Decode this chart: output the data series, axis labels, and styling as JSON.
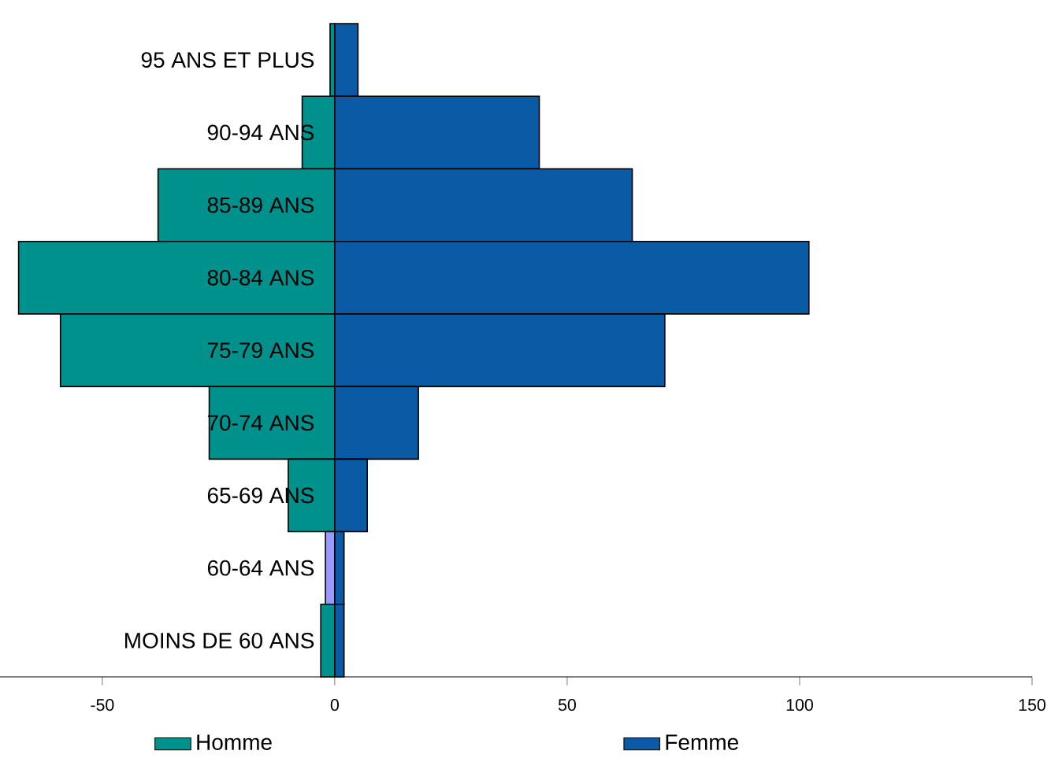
{
  "chart_data": {
    "type": "bar",
    "orientation": "horizontal",
    "categories": [
      "95 ANS ET PLUS",
      "90-94 ANS",
      "85-89 ANS",
      "80-84 ANS",
      "75-79 ANS",
      "70-74 ANS",
      "65-69 ANS",
      "60-64 ANS",
      "MOINS DE 60 ANS"
    ],
    "series": [
      {
        "name": "Homme",
        "color": "#00918c",
        "colors": [
          "#00918c",
          "#00918c",
          "#00918c",
          "#00918c",
          "#00918c",
          "#00918c",
          "#00918c",
          "#9999ff",
          "#00918c"
        ],
        "values": [
          -1,
          -7,
          -38,
          -68,
          -59,
          -27,
          -10,
          -2,
          -3
        ]
      },
      {
        "name": "Femme",
        "color": "#0a5aa5",
        "values": [
          5,
          44,
          64,
          102,
          71,
          18,
          7,
          2,
          2
        ]
      }
    ],
    "stacked": true,
    "xlim": [
      -72,
      150
    ],
    "xticks": [
      -50,
      0,
      50,
      100,
      150
    ],
    "legend": "bottom"
  }
}
